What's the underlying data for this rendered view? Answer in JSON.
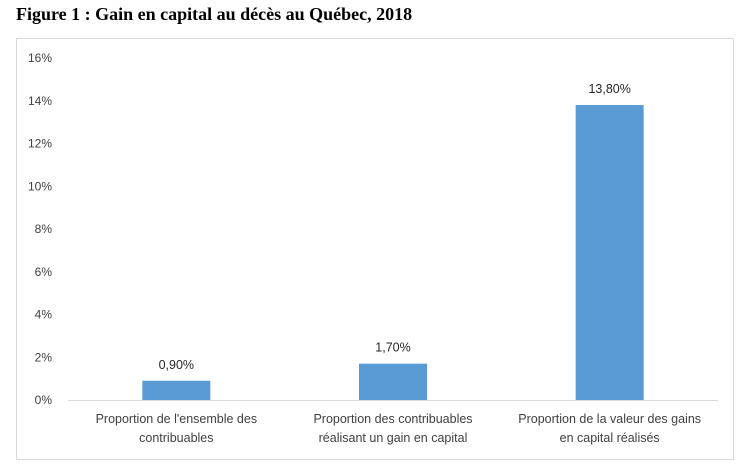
{
  "figure_title": "Figure 1 : Gain en capital au décès au Québec, 2018",
  "chart_data": {
    "type": "bar",
    "categories": [
      [
        "Proportion de l'ensemble des",
        "contribuables"
      ],
      [
        "Proportion des contribuables",
        "réalisant un gain en capital"
      ],
      [
        "Proportion de la valeur des gains",
        "en capital réalisés"
      ]
    ],
    "values": [
      0.9,
      1.7,
      13.8
    ],
    "data_labels": [
      "0,90%",
      "1,70%",
      "13,80%"
    ],
    "y_ticks": [
      "0%",
      "2%",
      "4%",
      "6%",
      "8%",
      "10%",
      "12%",
      "14%",
      "16%"
    ],
    "ylim": [
      0,
      16
    ],
    "grid": false,
    "legend": "none",
    "bar_color": "#5b9bd5",
    "axis_color": "#d9d9d9"
  }
}
